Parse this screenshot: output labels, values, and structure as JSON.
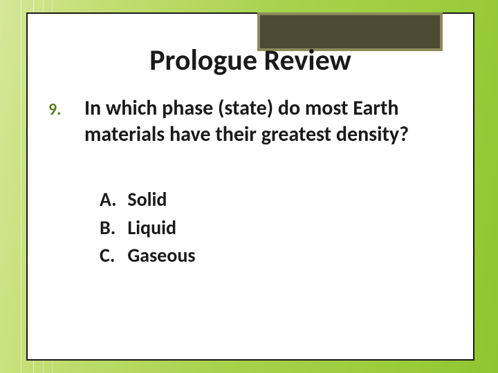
{
  "slide": {
    "title": "Prologue Review",
    "question_number": "9.",
    "question_text": "In which phase (state) do most Earth materials have their greatest density?",
    "options": [
      {
        "letter": "A.",
        "text": "Solid"
      },
      {
        "letter": "B.",
        "text": "Liquid"
      },
      {
        "letter": "C.",
        "text": "Gaseous"
      }
    ]
  },
  "style": {
    "background_gradient": [
      "#d4e89a",
      "#a8d24d",
      "#8fc531"
    ],
    "card_background": "#ffffff",
    "card_border": "#1a1a1a",
    "accent_box_fill": "#4b4b33",
    "accent_box_border": "#8a8a5c",
    "title_fontsize": 42,
    "title_color": "#1a1a1a",
    "qnum_color": "#5c7a1f",
    "qnum_fontsize": 24,
    "qtext_fontsize": 30,
    "qtext_color": "#1a1a1a",
    "option_fontsize": 28,
    "option_color": "#1a1a1a",
    "deco_line_color": "rgba(255,255,255,0.5)"
  }
}
